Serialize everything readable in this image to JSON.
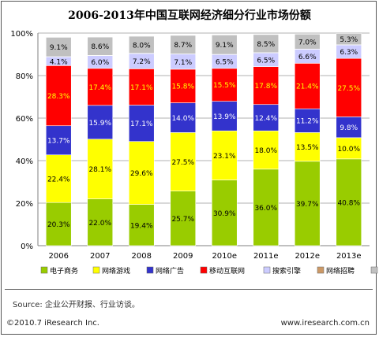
{
  "chart_data": {
    "type": "bar",
    "stacked": true,
    "title": "2006-2013年中国互联网经济细分行业市场份额",
    "categories": [
      "2006",
      "2007",
      "2008",
      "2009",
      "2010e",
      "2011e",
      "2012e",
      "2013e"
    ],
    "ylim": [
      0,
      100
    ],
    "yticks": [
      "0%",
      "20%",
      "40%",
      "60%",
      "80%",
      "100%"
    ],
    "grid": true,
    "legend_position": "bottom",
    "series": [
      {
        "name": "电子商务",
        "color": "#99cc00",
        "values": [
          20.3,
          22.0,
          19.4,
          25.7,
          30.9,
          36.0,
          39.7,
          40.8
        ],
        "labels": [
          "20.3%",
          "22.0%",
          "19.4%",
          "25.7%",
          "30.9%",
          "36.0%",
          "39.7%",
          "40.8%"
        ],
        "label_color": "#000000"
      },
      {
        "name": "网络游戏",
        "color": "#ffff00",
        "values": [
          22.4,
          28.1,
          29.6,
          27.5,
          23.1,
          18.0,
          13.5,
          10.0
        ],
        "labels": [
          "22.4%",
          "28.1%",
          "29.6%",
          "27.5%",
          "23.1%",
          "18.0%",
          "13.5%",
          "10.0%"
        ],
        "label_color": "#000000"
      },
      {
        "name": "网络广告",
        "color": "#3333cc",
        "values": [
          13.7,
          15.9,
          17.1,
          14.0,
          13.9,
          12.4,
          11.2,
          9.8
        ],
        "labels": [
          "13.7%",
          "15.9%",
          "17.1%",
          "14.0%",
          "13.9%",
          "12.4%",
          "11.2%",
          "9.8%"
        ],
        "label_color": "#ffffff"
      },
      {
        "name": "移动互联网",
        "color": "#ff0000",
        "values": [
          28.3,
          17.4,
          17.1,
          15.8,
          15.5,
          17.8,
          21.4,
          27.5
        ],
        "labels": [
          "28.3%",
          "17.4%",
          "17.1%",
          "15.8%",
          "15.5%",
          "17.8%",
          "21.4%",
          "27.5%"
        ],
        "label_color": "#ffff00"
      },
      {
        "name": "搜索引擎",
        "color": "#ccccff",
        "values": [
          4.1,
          6.0,
          7.2,
          7.1,
          6.5,
          6.5,
          6.6,
          6.3
        ],
        "labels": [
          "4.1%",
          "6.0%",
          "7.2%",
          "7.1%",
          "6.5%",
          "6.5%",
          "6.6%",
          "6.3%"
        ],
        "label_color": "#000000"
      },
      {
        "name": "网络招聘",
        "color": "#cc9966",
        "values": [
          0.1,
          0.1,
          0.1,
          0.1,
          0.1,
          0.1,
          0.1,
          0.1
        ],
        "labels": [],
        "label_color": "#000000"
      },
      {
        "name": "其他",
        "color": "#c0c0c0",
        "values": [
          9.1,
          8.6,
          8.0,
          8.7,
          9.1,
          8.5,
          7.0,
          5.3
        ],
        "labels": [
          "9.1%",
          "8.6%",
          "8.0%",
          "8.7%",
          "9.1%",
          "8.5%",
          "7.0%",
          "5.3%"
        ],
        "label_color": "#000000"
      }
    ]
  },
  "footer": {
    "source": "Source: 企业公开财报、行业访谈。",
    "copyright": "©2010.7 iResearch Inc.",
    "website": "www.iresearch.com.cn"
  }
}
